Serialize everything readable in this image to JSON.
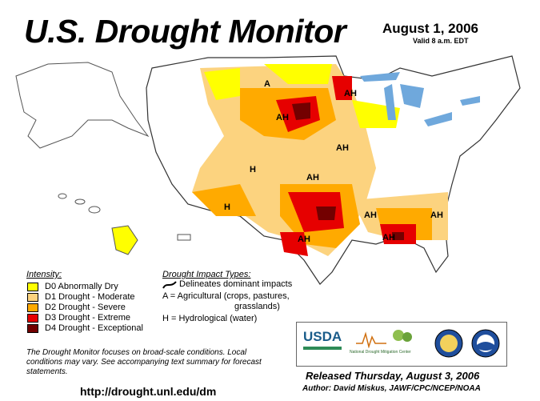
{
  "header": {
    "title": "U.S. Drought Monitor",
    "date": "August 1, 2006",
    "valid": "Valid 8 a.m. EDT"
  },
  "legend": {
    "intensity_heading": "Intensity:",
    "categories": [
      {
        "label": "D0 Abnormally Dry",
        "color": "#ffff00"
      },
      {
        "label": "D1 Drought - Moderate",
        "color": "#fcd37f"
      },
      {
        "label": "D2 Drought - Severe",
        "color": "#ffaa00"
      },
      {
        "label": "D3 Drought - Extreme",
        "color": "#e60000"
      },
      {
        "label": "D4 Drought - Exceptional",
        "color": "#730000"
      }
    ]
  },
  "impact": {
    "heading": "Drought Impact Types:",
    "line1": "Delineates dominant impacts",
    "line2": "A = Agricultural (crops, pastures,",
    "line3": "grasslands)",
    "line4": "H = Hydrological (water)"
  },
  "map_labels": [
    "A",
    "AH",
    "AH",
    "AH",
    "H",
    "AH",
    "H",
    "AH",
    "AH",
    "AH",
    "AH"
  ],
  "note": "The Drought Monitor focuses on broad-scale conditions. Local conditions may vary. See accompanying text summary for forecast statements.",
  "url": "http://drought.unl.edu/dm",
  "logos": {
    "usda": "USDA",
    "ndmc": "National Drought Mitigation Center"
  },
  "footer": {
    "released": "Released Thursday, August 3, 2006",
    "author": "Author: David Miskus, JAWF/CPC/NCEP/NOAA"
  }
}
